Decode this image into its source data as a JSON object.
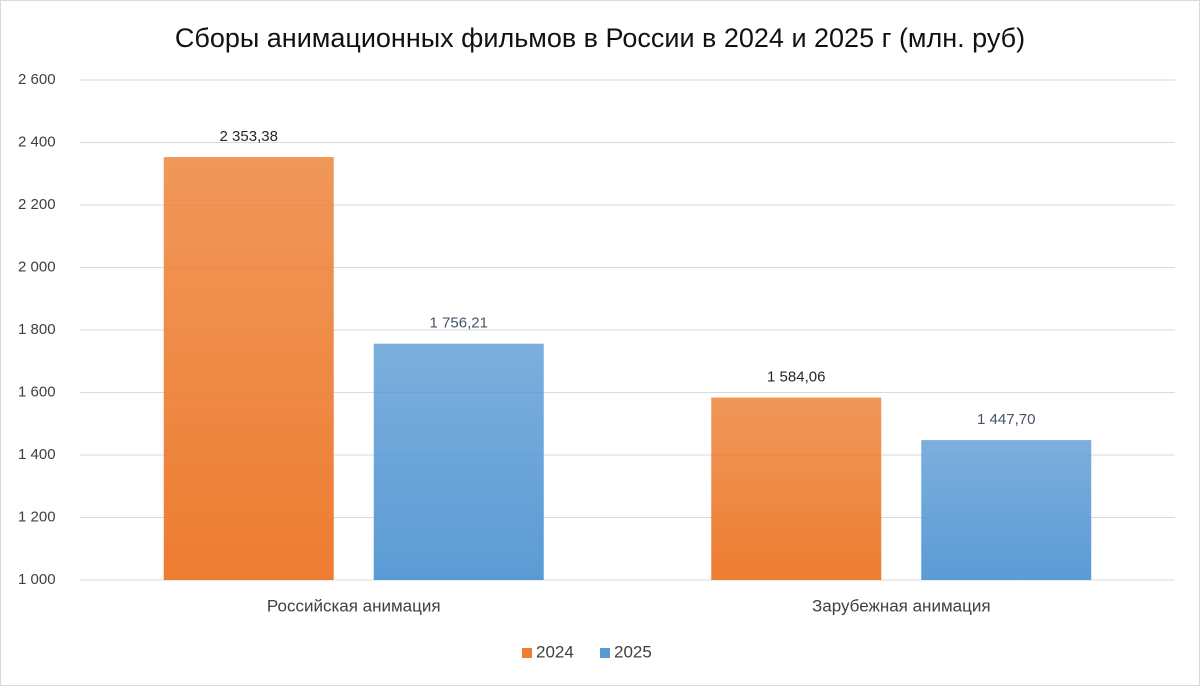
{
  "chart_data": {
    "type": "bar",
    "title": "Сборы анимационных фильмов в России в 2024 и 2025 г (млн. руб)",
    "categories": [
      "Российская анимация",
      "Зарубежная анимация"
    ],
    "series": [
      {
        "name": "2024",
        "color": "#ed7d31",
        "label_color": "#262626",
        "values": [
          2353.38,
          1584.06
        ],
        "value_labels": [
          "2 353,38",
          "1 584,06"
        ]
      },
      {
        "name": "2025",
        "color": "#5b9bd5",
        "label_color": "#44546a",
        "values": [
          1756.21,
          1447.7
        ],
        "value_labels": [
          "1 756,21",
          "1 447,70"
        ]
      }
    ],
    "ylim": [
      1000,
      2600
    ],
    "yticks": [
      {
        "value": 1000,
        "label": "1 000"
      },
      {
        "value": 1200,
        "label": "1 200"
      },
      {
        "value": 1400,
        "label": "1 400"
      },
      {
        "value": 1600,
        "label": "1 600"
      },
      {
        "value": 1800,
        "label": "1 800"
      },
      {
        "value": 2000,
        "label": "2 000"
      },
      {
        "value": 2200,
        "label": "2 200"
      },
      {
        "value": 2400,
        "label": "2 400"
      },
      {
        "value": 2600,
        "label": "2 600"
      }
    ],
    "grid": true,
    "legend": "bottom"
  }
}
